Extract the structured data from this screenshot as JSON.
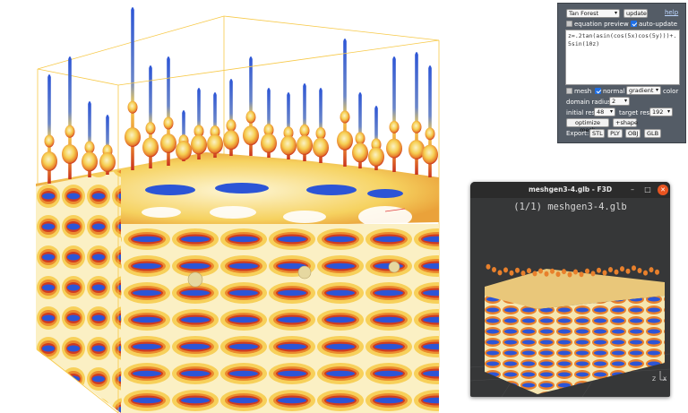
{
  "panel": {
    "preset": "Tan Forest",
    "update_label": "update",
    "help_label": "help",
    "equation_preview_label": "equation preview",
    "equation_preview_checked": false,
    "auto_update_label": "auto-update",
    "auto_update_checked": true,
    "equation": "z=.2tan(asin(cos(5x)cos(5y)))+.5sin(10z)",
    "mesh_label": "mesh",
    "mesh_checked": false,
    "normal_label": "normal",
    "normal_checked": true,
    "color_mode": "gradient",
    "color_label": "color",
    "domain_radius_label": "domain radius",
    "domain_radius": "2",
    "initial_res_label": "initial res",
    "initial_res": "48",
    "target_res_label": "target res",
    "target_res": "192",
    "optimize_label": "optimize mesh",
    "shape_label": "+shape",
    "export_label": "Export:",
    "export_formats": [
      "STL",
      "PLY",
      "OBJ",
      "GLB"
    ]
  },
  "viewer": {
    "window_title": "meshgen3-4.glb - F3D",
    "header": "(1/1) meshgen3-4.glb",
    "minimize_icon": "–",
    "maximize_icon": "□",
    "close_icon": "✕",
    "axes_labels": [
      "Z",
      "X"
    ]
  },
  "colors": {
    "cream": "#fbf2c6",
    "yellow": "#f6cf52",
    "orange": "#e8802c",
    "red": "#c8321e",
    "blue": "#2c55d6",
    "bounding_box": "#f7c948",
    "panel_bg": "#545c66",
    "viewer_bg": "#363738"
  }
}
